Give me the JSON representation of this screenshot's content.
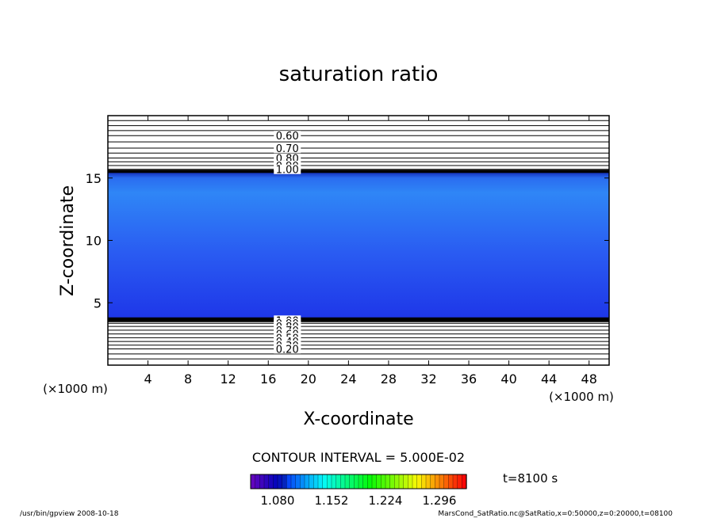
{
  "chart_data": {
    "type": "heatmap",
    "title": "saturation ratio",
    "xlabel": "X-coordinate",
    "ylabel": "Z-coordinate",
    "x_unit": "(×1000 m)",
    "y_unit": "(×1000 m)",
    "xlim": [
      0,
      50
    ],
    "ylim": [
      0,
      20
    ],
    "x_ticks": [
      4,
      8,
      12,
      16,
      20,
      24,
      28,
      32,
      36,
      40,
      44,
      48
    ],
    "y_ticks": [
      5,
      10,
      15
    ],
    "upper_contours": [
      {
        "z": 19.6,
        "label": ""
      },
      {
        "z": 19.2,
        "label": ""
      },
      {
        "z": 18.8,
        "label": ""
      },
      {
        "z": 18.4,
        "label": "0.60"
      },
      {
        "z": 17.9,
        "label": ""
      },
      {
        "z": 17.4,
        "label": "0.70"
      },
      {
        "z": 17.0,
        "label": ""
      },
      {
        "z": 16.6,
        "label": "0.80"
      },
      {
        "z": 16.3,
        "label": ""
      },
      {
        "z": 16.0,
        "label": "0.90"
      },
      {
        "z": 15.7,
        "label": "1.00"
      }
    ],
    "lower_contours": [
      {
        "z": 3.6,
        "label": "1.00"
      },
      {
        "z": 3.35,
        "label": "0.90"
      },
      {
        "z": 3.1,
        "label": "0.80"
      },
      {
        "z": 2.8,
        "label": "0.70"
      },
      {
        "z": 2.5,
        "label": "0.60"
      },
      {
        "z": 2.2,
        "label": "0.50"
      },
      {
        "z": 1.9,
        "label": "0.40"
      },
      {
        "z": 1.6,
        "label": "0.30"
      },
      {
        "z": 1.3,
        "label": "0.20"
      },
      {
        "z": 0.9,
        "label": ""
      },
      {
        "z": 0.5,
        "label": ""
      }
    ],
    "filled_band": {
      "z_bottom": 3.7,
      "z_top": 15.6,
      "value_bottom": 1.07,
      "value_top": 1.14
    },
    "colorbar": {
      "min": 1.044,
      "max": 1.332,
      "tick_labels": [
        "1.080",
        "1.152",
        "1.224",
        "1.296"
      ],
      "tick_values": [
        1.08,
        1.152,
        1.224,
        1.296
      ]
    },
    "contour_interval": "CONTOUR INTERVAL = 5.000E-02",
    "time_label": "t=8100 s"
  },
  "footer": {
    "program": "/usr/bin/gpview   2008-10-18",
    "source": "MarsCond_SatRatio.nc@SatRatio,x=0:50000,z=0:20000,t=08100"
  }
}
